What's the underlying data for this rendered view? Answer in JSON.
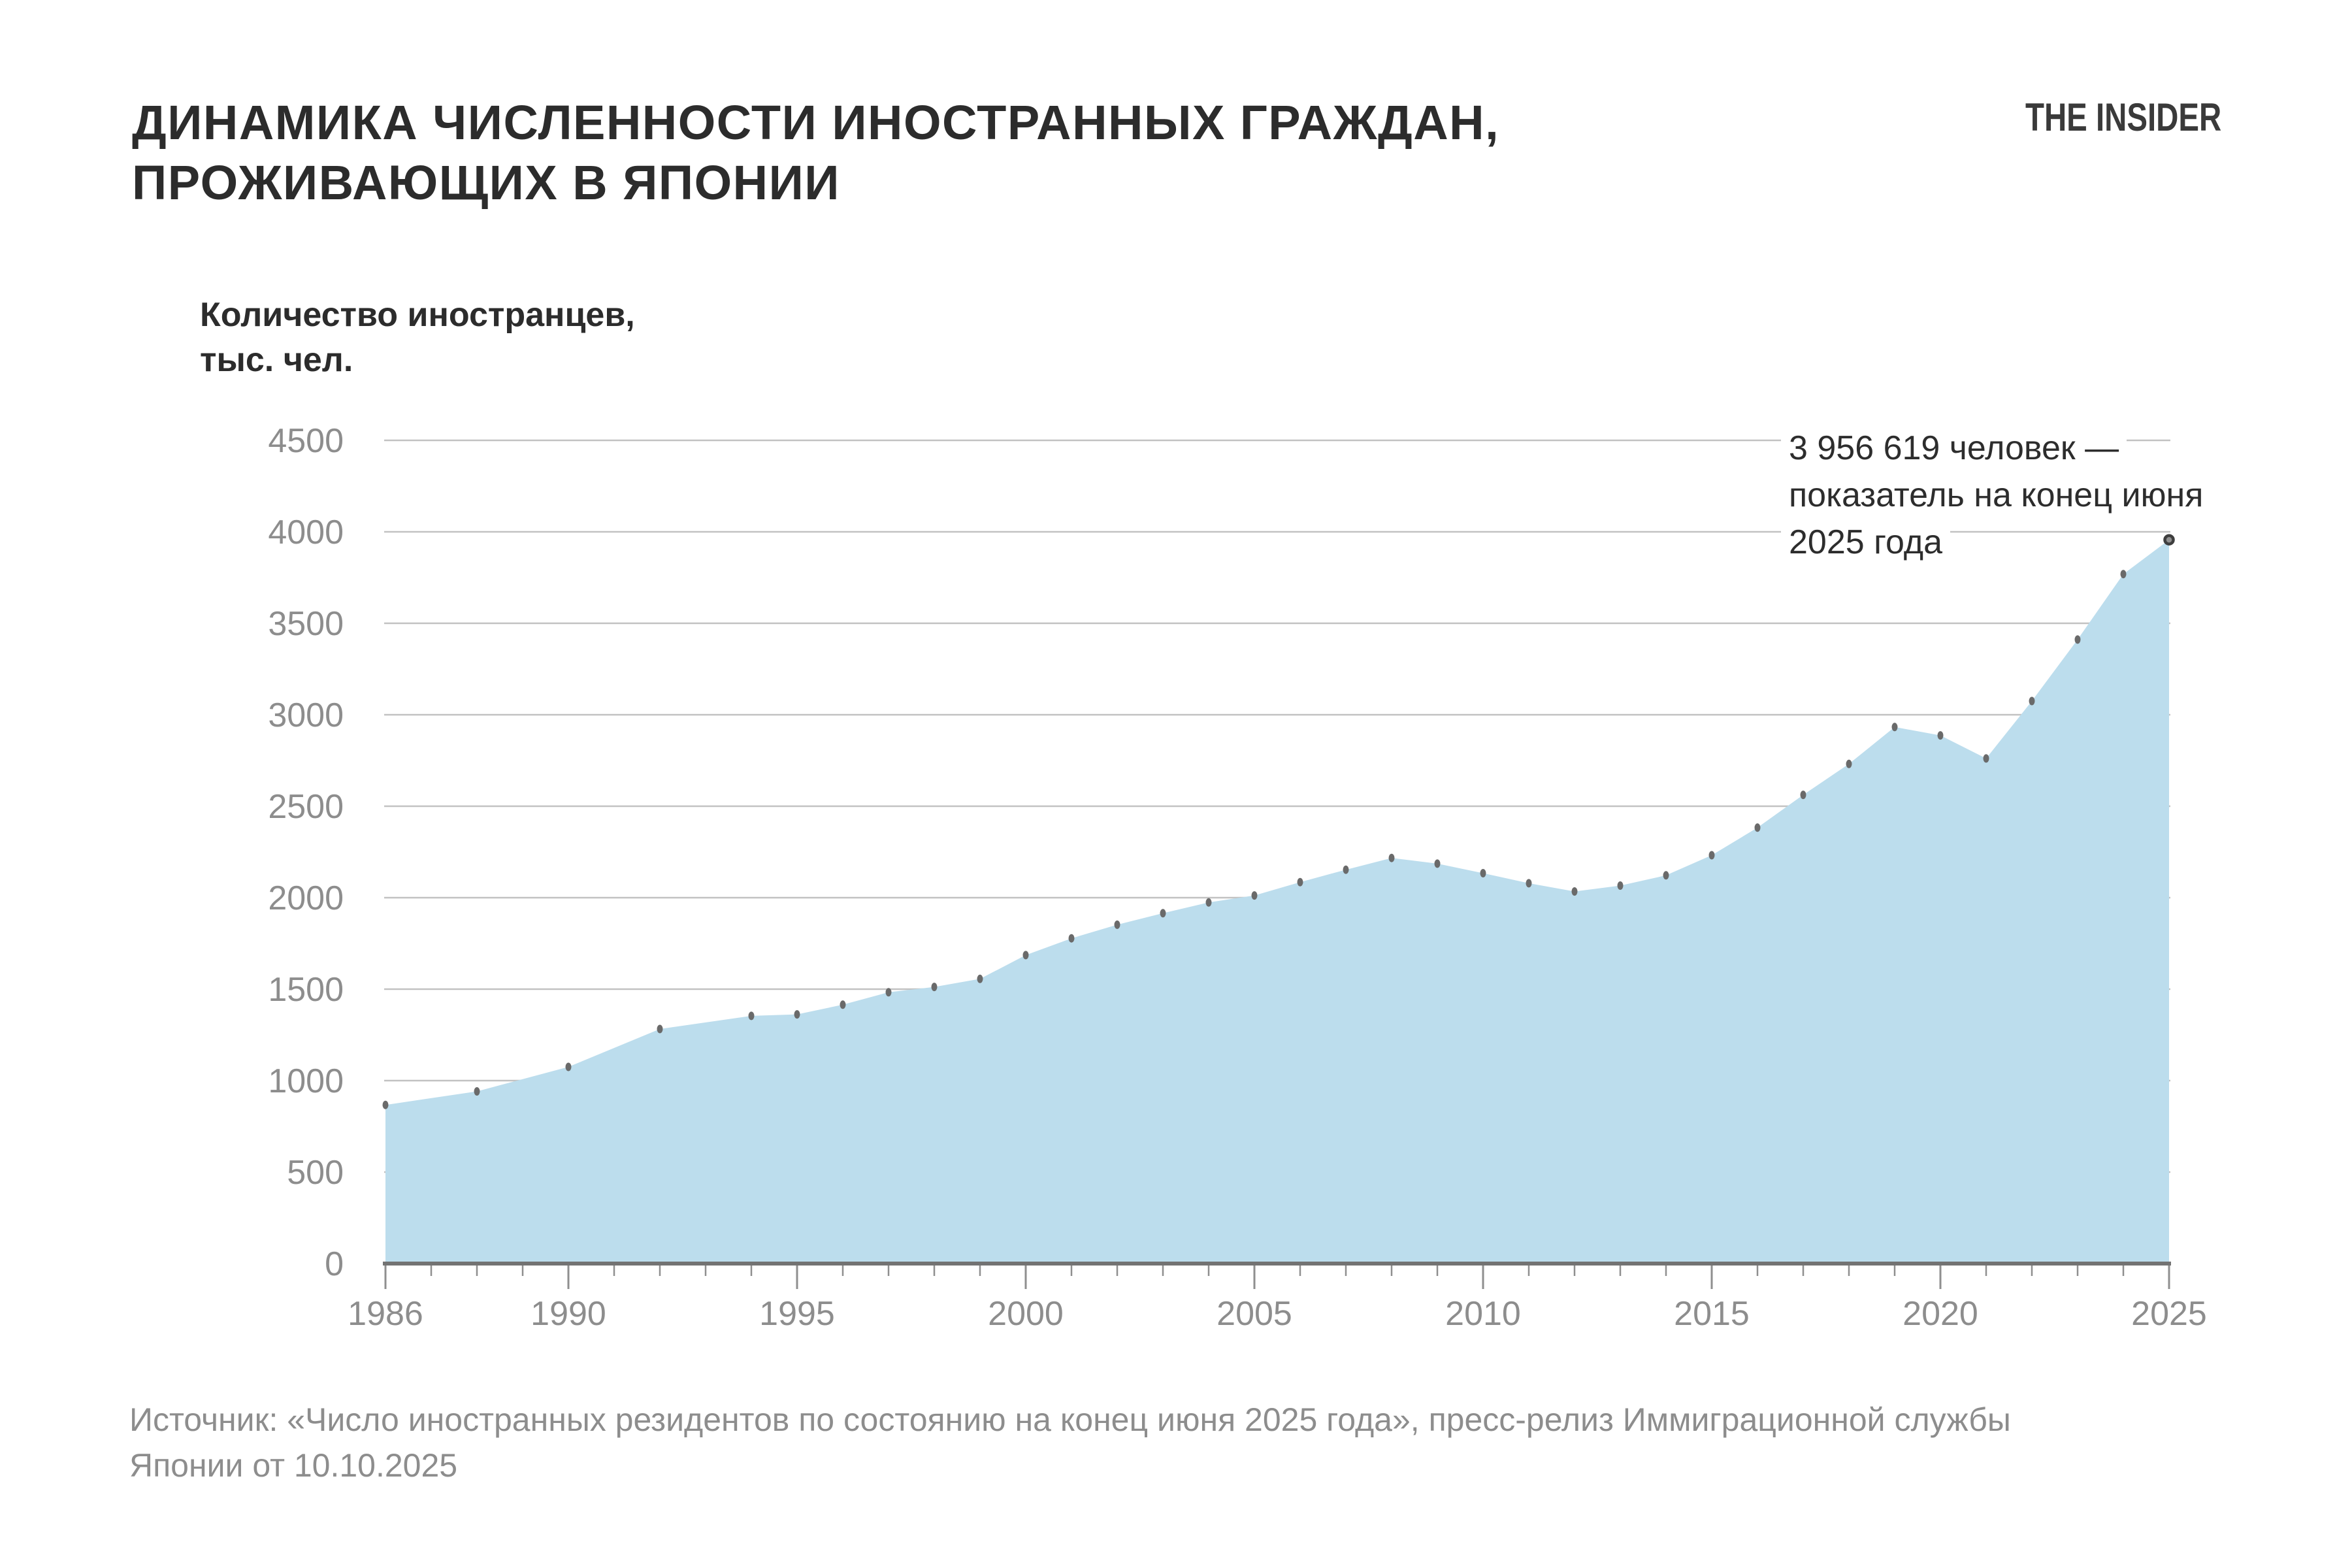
{
  "title": {
    "line1": "ДИНАМИКА ЧИСЛЕННОСТИ ИНОСТРАННЫХ ГРАЖДАН,",
    "line2": "ПРОЖИВАЮЩИХ В ЯПОНИИ"
  },
  "logo": {
    "text": "THE INSIDER"
  },
  "axis_title": {
    "line1": "Количество иностранцев,",
    "line2": "тыс. чел."
  },
  "annotation": {
    "line1": "3 956 619 человек —",
    "line2": "показатель на конец июня",
    "line3": "2025 года"
  },
  "source": {
    "line1": "Источник: «Число иностранных резидентов по состоянию на конец июня 2025 года», пресс-релиз Иммиграционной службы",
    "line2": "Японии от 10.10.2025"
  },
  "colors": {
    "area_fill": "#bcdded",
    "dot": "#6a6a6a",
    "last_dot_ring": "#3e3e3e",
    "last_dot_fill": "#8f8f8f",
    "gridline": "#c2c2c2",
    "axis_line": "#737373",
    "tick": "#8f8f8f",
    "tick_label": "#8d8d8d",
    "text_dark": "#2c2c2c",
    "text_gray": "#8d8d8d"
  },
  "chart_data": {
    "type": "area",
    "title": "Динамика численности иностранных граждан, проживающих в Японии",
    "ylabel": "Количество иностранцев, тыс. чел.",
    "xlabel": "",
    "x": [
      1986,
      1988,
      1990,
      1992,
      1994,
      1995,
      1996,
      1997,
      1998,
      1999,
      2000,
      2001,
      2002,
      2003,
      2004,
      2005,
      2006,
      2007,
      2008,
      2009,
      2010,
      2011,
      2012,
      2013,
      2014,
      2015,
      2016,
      2017,
      2018,
      2019,
      2020,
      2021,
      2022,
      2023,
      2024,
      2025
    ],
    "values": [
      867,
      941,
      1075,
      1282,
      1354,
      1362,
      1415,
      1483,
      1512,
      1556,
      1686,
      1778,
      1852,
      1915,
      1974,
      2012,
      2085,
      2153,
      2217,
      2186,
      2134,
      2079,
      2034,
      2066,
      2122,
      2232,
      2383,
      2562,
      2731,
      2933,
      2887,
      2761,
      3075,
      3411,
      3769,
      3956.6
    ],
    "series_name": "Количество иностранцев, тыс. чел.",
    "xlim": [
      1986,
      2025
    ],
    "ylim": [
      0,
      4500
    ],
    "x_tick_labels": [
      1986,
      1990,
      1995,
      2000,
      2005,
      2010,
      2015,
      2020,
      2025
    ],
    "y_ticks": [
      0,
      500,
      1000,
      1500,
      2000,
      2500,
      3000,
      3500,
      4000,
      4500
    ],
    "grid": true,
    "legend": false,
    "last_point_exact_label": "3 956 619",
    "last_point_note": "показатель на конец июня 2025 года"
  }
}
